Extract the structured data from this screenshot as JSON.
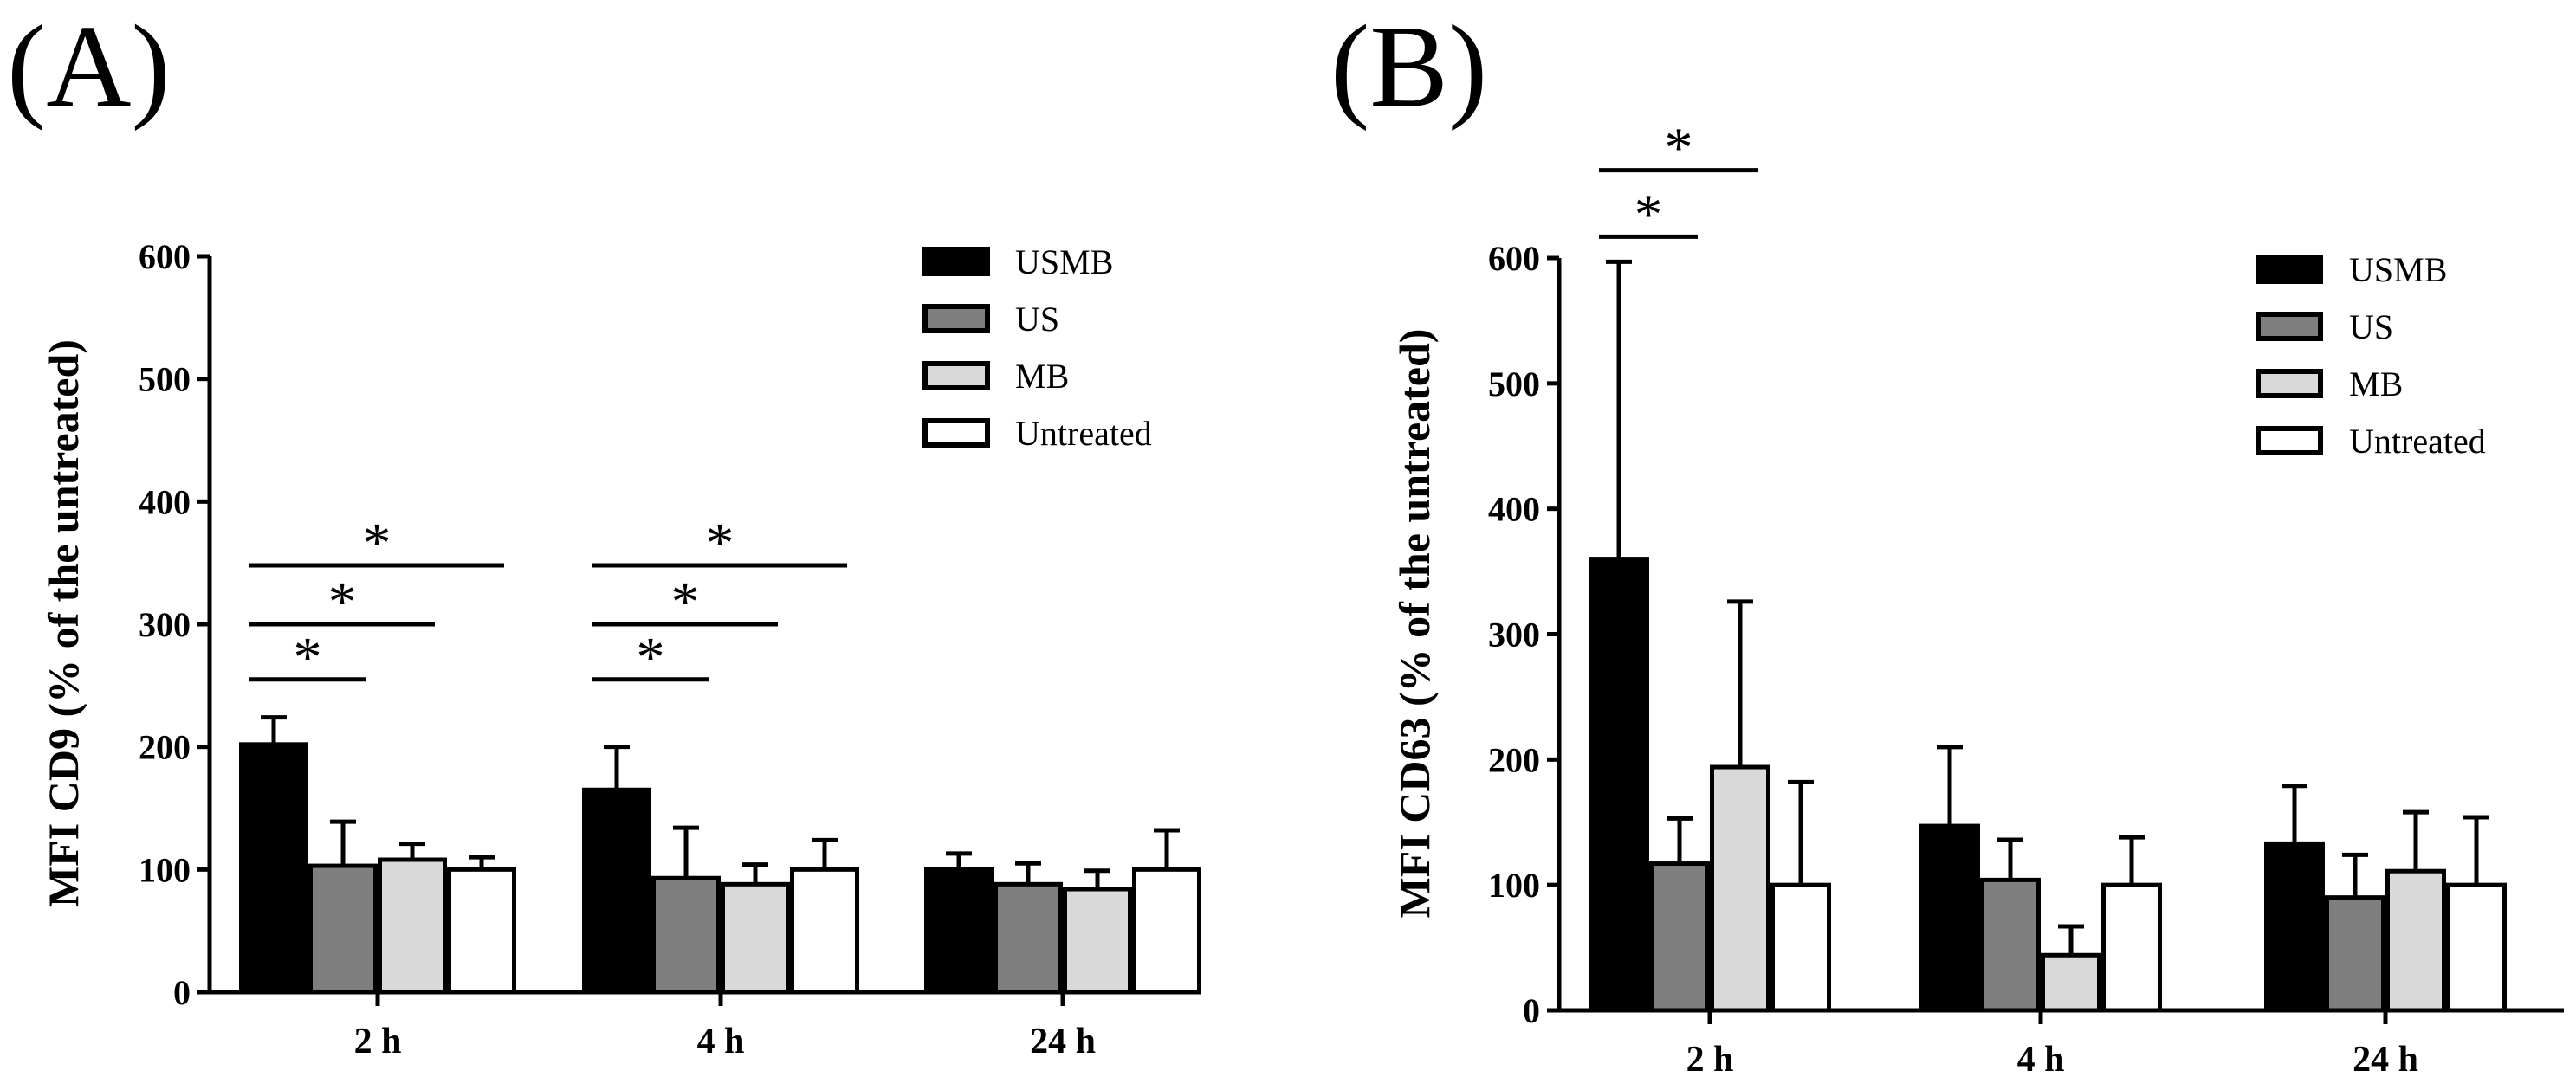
{
  "chart_data": [
    {
      "panel": "(A)",
      "type": "bar",
      "ylabel": "MFI CD9 (% of the untreated)",
      "xlabel": "",
      "ylim": [
        0,
        600
      ],
      "yticks": [
        "0",
        "100",
        "200",
        "300",
        "400",
        "500",
        "600"
      ],
      "categories": [
        "2 h",
        "4 h",
        "24 h"
      ],
      "legend_position": "top-right",
      "series": [
        {
          "name": "USMB",
          "color": "#000000",
          "values": [
            202,
            165,
            100
          ],
          "errors": [
            22,
            35,
            13
          ]
        },
        {
          "name": "US",
          "color": "#7f7f7f",
          "values": [
            103,
            93,
            88
          ],
          "errors": [
            36,
            41,
            17
          ]
        },
        {
          "name": "MB",
          "color": "#d9d9d9",
          "values": [
            108,
            88,
            84
          ],
          "errors": [
            13,
            16,
            15
          ]
        },
        {
          "name": "Untreated",
          "color": "#ffffff",
          "values": [
            100,
            100,
            100
          ],
          "errors": [
            10,
            24,
            32
          ]
        }
      ],
      "significance": [
        {
          "category": 0,
          "from": 0,
          "to": 1,
          "y": 255,
          "label": "*"
        },
        {
          "category": 0,
          "from": 0,
          "to": 2,
          "y": 300,
          "label": "*"
        },
        {
          "category": 0,
          "from": 0,
          "to": 3,
          "y": 348,
          "label": "*"
        },
        {
          "category": 1,
          "from": 0,
          "to": 1,
          "y": 255,
          "label": "*"
        },
        {
          "category": 1,
          "from": 0,
          "to": 2,
          "y": 300,
          "label": "*"
        },
        {
          "category": 1,
          "from": 0,
          "to": 3,
          "y": 348,
          "label": "*"
        }
      ]
    },
    {
      "panel": "(B)",
      "type": "bar",
      "ylabel": "MFI CD63 (% of the untreated)",
      "xlabel": "",
      "ylim": [
        0,
        600
      ],
      "yticks": [
        "0",
        "100",
        "200",
        "300",
        "400",
        "500",
        "600"
      ],
      "categories": [
        "2 h",
        "4 h",
        "24 h"
      ],
      "legend_position": "top-right",
      "series": [
        {
          "name": "USMB",
          "color": "#000000",
          "values": [
            360,
            147,
            133
          ],
          "errors": [
            237,
            63,
            46
          ]
        },
        {
          "name": "US",
          "color": "#7f7f7f",
          "values": [
            117,
            104,
            90
          ],
          "errors": [
            36,
            32,
            34
          ]
        },
        {
          "name": "MB",
          "color": "#d9d9d9",
          "values": [
            194,
            44,
            111
          ],
          "errors": [
            132,
            23,
            47
          ]
        },
        {
          "name": "Untreated",
          "color": "#ffffff",
          "values": [
            100,
            100,
            100
          ],
          "errors": [
            82,
            38,
            54
          ]
        }
      ],
      "significance": [
        {
          "category": 0,
          "from": 0,
          "to": 1,
          "y": 617,
          "label": "*"
        },
        {
          "category": 0,
          "from": 0,
          "to": 2,
          "y": 670,
          "label": "*"
        }
      ]
    }
  ]
}
